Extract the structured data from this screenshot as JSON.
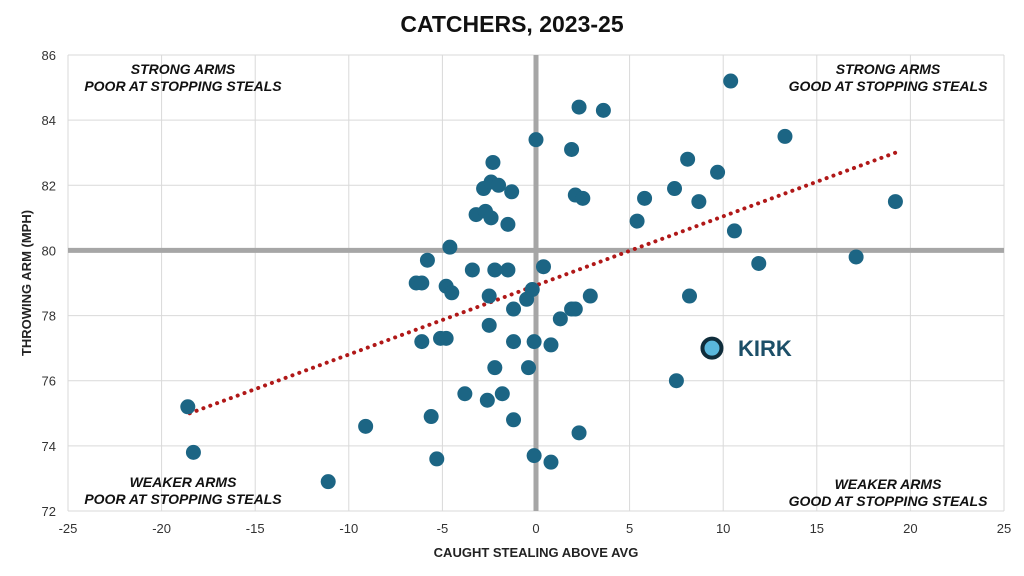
{
  "chart_data": {
    "type": "scatter",
    "title": "CATCHERS, 2023-25",
    "xlabel": "CAUGHT STEALING ABOVE AVG",
    "ylabel": "THROWING ARM (MPH)",
    "xlim": [
      -25,
      25
    ],
    "ylim": [
      72,
      86
    ],
    "xticks": [
      -25,
      -20,
      -15,
      -10,
      -5,
      0,
      5,
      10,
      15,
      20,
      25
    ],
    "yticks": [
      72,
      74,
      76,
      78,
      80,
      82,
      84,
      86
    ],
    "grid": true,
    "reference_lines": {
      "x": 0,
      "y": 80
    },
    "trendline": {
      "style": "dotted",
      "from": [
        -18.5,
        75.0
      ],
      "to": [
        19.2,
        83.0
      ]
    },
    "quadrant_labels": {
      "top_left": [
        "STRONG ARMS",
        "POOR AT STOPPING STEALS"
      ],
      "top_right": [
        "STRONG ARMS",
        "GOOD AT STOPPING STEALS"
      ],
      "bottom_left": [
        "WEAKER ARMS",
        "POOR AT STOPPING STEALS"
      ],
      "bottom_right": [
        "WEAKER ARMS",
        "GOOD AT STOPPING STEALS"
      ]
    },
    "highlight": {
      "label": "KIRK",
      "x": 9.4,
      "y": 77.0
    },
    "points": [
      [
        -18.6,
        75.2
      ],
      [
        -18.3,
        73.8
      ],
      [
        -11.1,
        72.9
      ],
      [
        -9.1,
        74.6
      ],
      [
        -6.4,
        79.0
      ],
      [
        -6.1,
        77.2
      ],
      [
        -6.1,
        79.0
      ],
      [
        -5.8,
        79.7
      ],
      [
        -5.6,
        74.9
      ],
      [
        -5.3,
        73.6
      ],
      [
        -5.1,
        77.3
      ],
      [
        -4.8,
        77.3
      ],
      [
        -4.8,
        78.9
      ],
      [
        -4.6,
        80.1
      ],
      [
        -4.5,
        78.7
      ],
      [
        -3.8,
        75.6
      ],
      [
        -3.4,
        79.4
      ],
      [
        -3.2,
        81.1
      ],
      [
        -2.8,
        81.9
      ],
      [
        -2.7,
        81.2
      ],
      [
        -2.6,
        75.4
      ],
      [
        -2.5,
        78.6
      ],
      [
        -2.5,
        77.7
      ],
      [
        -2.4,
        82.1
      ],
      [
        -2.4,
        81.0
      ],
      [
        -2.3,
        82.7
      ],
      [
        -2.2,
        76.4
      ],
      [
        -2.2,
        79.4
      ],
      [
        -2.0,
        82.0
      ],
      [
        -1.8,
        75.6
      ],
      [
        -1.5,
        80.8
      ],
      [
        -1.5,
        79.4
      ],
      [
        -1.3,
        81.8
      ],
      [
        -1.2,
        77.2
      ],
      [
        -1.2,
        78.2
      ],
      [
        -1.2,
        74.8
      ],
      [
        -0.5,
        78.5
      ],
      [
        -0.4,
        76.4
      ],
      [
        -0.2,
        78.8
      ],
      [
        -0.1,
        77.2
      ],
      [
        -0.1,
        73.7
      ],
      [
        0.0,
        83.4
      ],
      [
        0.4,
        79.5
      ],
      [
        0.8,
        77.1
      ],
      [
        0.8,
        73.5
      ],
      [
        1.3,
        77.9
      ],
      [
        1.9,
        78.2
      ],
      [
        1.9,
        83.1
      ],
      [
        2.1,
        78.2
      ],
      [
        2.1,
        81.7
      ],
      [
        2.3,
        84.4
      ],
      [
        2.3,
        74.4
      ],
      [
        2.5,
        81.6
      ],
      [
        2.9,
        78.6
      ],
      [
        3.6,
        84.3
      ],
      [
        5.4,
        80.9
      ],
      [
        5.8,
        81.6
      ],
      [
        7.4,
        81.9
      ],
      [
        7.5,
        76.0
      ],
      [
        8.1,
        82.8
      ],
      [
        8.2,
        78.6
      ],
      [
        8.7,
        81.5
      ],
      [
        9.7,
        82.4
      ],
      [
        10.4,
        85.2
      ],
      [
        10.6,
        80.6
      ],
      [
        11.9,
        79.6
      ],
      [
        13.3,
        83.5
      ],
      [
        17.1,
        79.8
      ],
      [
        19.2,
        81.5
      ]
    ],
    "colors": {
      "point": "#1c6584",
      "trendline": "#b01818",
      "reference": "#a6a6a6",
      "grid": "#d9d9d9",
      "highlight_fill": "#5ab8dd",
      "highlight_ring": "#0f2d3b",
      "highlight_text": "#1c4f68"
    }
  }
}
